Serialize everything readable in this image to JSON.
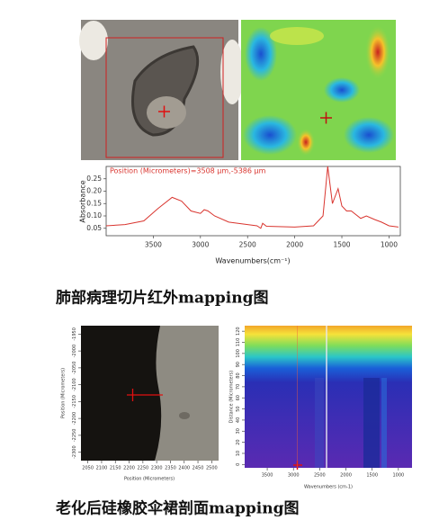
{
  "figure1": {
    "spectrum": {
      "type": "line",
      "title": "Position (Micrometers)=3508 µm,-5386 µm",
      "y_label": "Absorbance",
      "x_label": "Wavenumbers(cm⁻¹)",
      "xlim": [
        4000,
        880
      ],
      "ylim": [
        0.02,
        0.3
      ],
      "xticks": [
        3500,
        3000,
        2500,
        2000,
        1500,
        1000
      ],
      "yticks": [
        0.05,
        {
          "value": 0.1,
          "label": "0.10"
        },
        0.15,
        {
          "value": 0.2,
          "label": "0.20"
        },
        0.25
      ],
      "color": "#d9352f",
      "x": [
        4000,
        3800,
        3600,
        3450,
        3300,
        3200,
        3100,
        3000,
        2960,
        2920,
        2850,
        2700,
        2500,
        2400,
        2360,
        2340,
        2300,
        2000,
        1800,
        1700,
        1650,
        1600,
        1540,
        1500,
        1450,
        1400,
        1300,
        1240,
        1150,
        1080,
        1000,
        900
      ],
      "values": [
        0.06,
        0.065,
        0.08,
        0.13,
        0.175,
        0.16,
        0.12,
        0.11,
        0.125,
        0.12,
        0.1,
        0.075,
        0.065,
        0.06,
        0.05,
        0.07,
        0.058,
        0.055,
        0.06,
        0.1,
        0.3,
        0.15,
        0.21,
        0.14,
        0.12,
        0.12,
        0.09,
        0.1,
        0.085,
        0.075,
        0.06,
        0.055
      ]
    },
    "caption": "肺部病理切片红外mapping图"
  },
  "figure2": {
    "micrograph": {
      "x_label": "Position (Micrometers)",
      "y_label": "Position (Micrometers)",
      "xlim": [
        2025,
        2525
      ],
      "ylim": [
        -2325,
        -1925
      ],
      "xticks": [
        2050,
        2100,
        2150,
        2200,
        2250,
        2300,
        2350,
        2400,
        2450,
        2500
      ],
      "yticks": [
        -1950,
        -2000,
        -2050,
        -2100,
        -2150,
        -2200,
        -2250,
        -2300
      ]
    },
    "map": {
      "x_label": "Wavenumbers (cm-1)",
      "y_label": "Distance (Micrometers)",
      "xlim": [
        3930,
        740
      ],
      "ylim": [
        -3,
        125
      ],
      "xticks": [
        3500,
        3000,
        2500,
        2000,
        1500,
        1000
      ],
      "yticks": [
        0,
        10,
        20,
        30,
        40,
        50,
        60,
        70,
        80,
        90,
        100,
        110,
        120
      ]
    },
    "caption": "老化后硅橡胶伞裙剖面mapping图"
  }
}
